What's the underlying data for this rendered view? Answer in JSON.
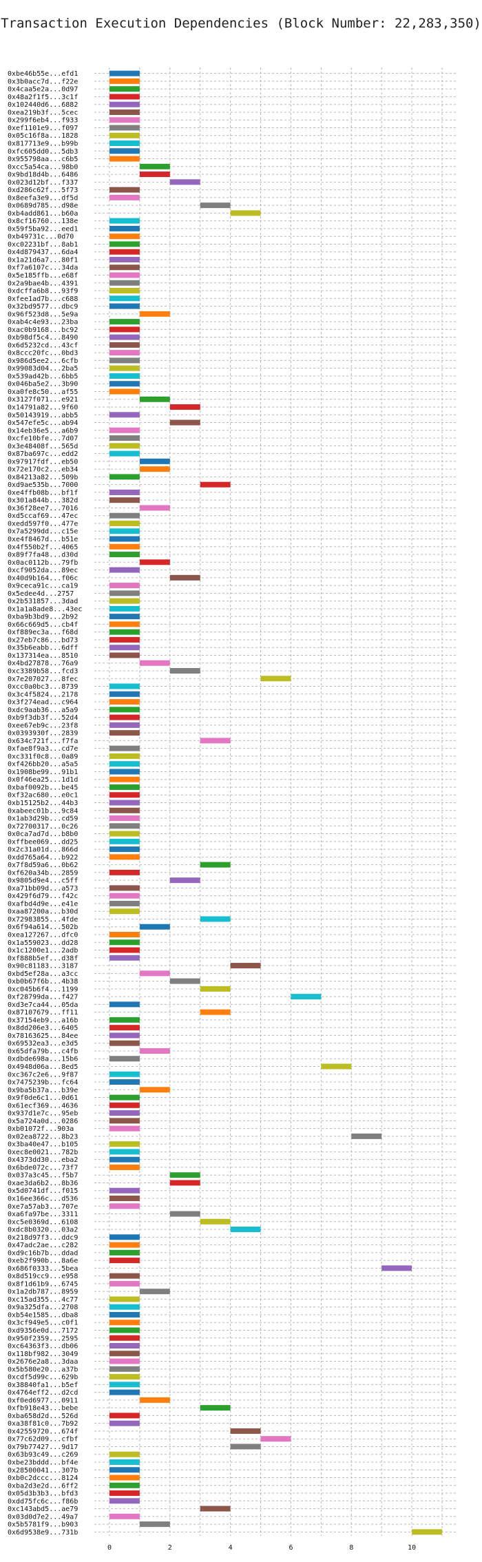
{
  "chart_data": {
    "type": "bar",
    "orientation": "horizontal-gantt",
    "title": "Transaction Execution Dependencies (Block Number: 22,283,350)",
    "xlabel": "",
    "ylabel": "",
    "xlim": [
      -0.5,
      11.5
    ],
    "xticks": [
      0,
      2,
      4,
      6,
      8,
      10
    ],
    "grid": true,
    "palette": [
      "#1f77b4",
      "#ff7f0e",
      "#2ca02c",
      "#d62728",
      "#9467bd",
      "#8c564b",
      "#e377c2",
      "#7f7f7f",
      "#bcbd22",
      "#17becf"
    ],
    "transactions": [
      {
        "label": "0xbe46b55e...efd1",
        "start": 0
      },
      {
        "label": "0x3b0acc7d...f22e",
        "start": 0
      },
      {
        "label": "0x4caa5e2a...0d97",
        "start": 0
      },
      {
        "label": "0x48a2f1f5...3c1f",
        "start": 0
      },
      {
        "label": "0x102440d6...6882",
        "start": 0
      },
      {
        "label": "0xea219b3f...5cec",
        "start": 0
      },
      {
        "label": "0x299f6eb4...f933",
        "start": 0
      },
      {
        "label": "0xef1101e9...f097",
        "start": 0
      },
      {
        "label": "0x05c16f8a...1828",
        "start": 0
      },
      {
        "label": "0x817713e9...b99b",
        "start": 0
      },
      {
        "label": "0xfc605dd0...5db3",
        "start": 0
      },
      {
        "label": "0x955798aa...c6b5",
        "start": 0
      },
      {
        "label": "0xcc5a54ca...98b0",
        "start": 1
      },
      {
        "label": "0x9bd18d4b...6486",
        "start": 1
      },
      {
        "label": "0x023d12bf...f337",
        "start": 2
      },
      {
        "label": "0xd286c62f...5f73",
        "start": 0
      },
      {
        "label": "0x8eefa3e9...df5d",
        "start": 0
      },
      {
        "label": "0x0689d785...d98e",
        "start": 3
      },
      {
        "label": "0xb4add861...b60a",
        "start": 4
      },
      {
        "label": "0x8cf16760...138e",
        "start": 0
      },
      {
        "label": "0x59f5ba92...eed1",
        "start": 0
      },
      {
        "label": "0xb49731c...0d70",
        "start": 0
      },
      {
        "label": "0xc02231bf...8ab1",
        "start": 0
      },
      {
        "label": "0x4d879437...6da4",
        "start": 0
      },
      {
        "label": "0x1a21d6a7...80f1",
        "start": 0
      },
      {
        "label": "0xf7a6107c...34da",
        "start": 0
      },
      {
        "label": "0x5e185ffb...e68f",
        "start": 0
      },
      {
        "label": "0x2a9bae4b...4391",
        "start": 0
      },
      {
        "label": "0xdcffa6b8...93f9",
        "start": 0
      },
      {
        "label": "0xfee1ad7b...c688",
        "start": 0
      },
      {
        "label": "0x32bd9577...dbc9",
        "start": 0
      },
      {
        "label": "0x96f523d8...5e9a",
        "start": 1
      },
      {
        "label": "0xab4c4e93...23ba",
        "start": 0
      },
      {
        "label": "0xac0b9168...bc92",
        "start": 0
      },
      {
        "label": "0xb98df5c4...8490",
        "start": 0
      },
      {
        "label": "0x6d5232cd...43cf",
        "start": 0
      },
      {
        "label": "0x8ccc20fc...0bd3",
        "start": 0
      },
      {
        "label": "0x986d5ee2...6cfb",
        "start": 0
      },
      {
        "label": "0x99083d04...2ba5",
        "start": 0
      },
      {
        "label": "0x539ad42b...6bb5",
        "start": 0
      },
      {
        "label": "0x046ba5e2...3b90",
        "start": 0
      },
      {
        "label": "0xa0fe8c50...af55",
        "start": 0
      },
      {
        "label": "0x3127f071...e921",
        "start": 1
      },
      {
        "label": "0x14791a82...9f60",
        "start": 2
      },
      {
        "label": "0x50143919...abb5",
        "start": 0
      },
      {
        "label": "0x547efe5c...ab94",
        "start": 2
      },
      {
        "label": "0x14eb36e5...a6b9",
        "start": 0
      },
      {
        "label": "0xcfe10bfe...7d07",
        "start": 0
      },
      {
        "label": "0x3e48408f...565d",
        "start": 0
      },
      {
        "label": "0x87ba697c...edd2",
        "start": 0
      },
      {
        "label": "0x97917fdf...eb50",
        "start": 1
      },
      {
        "label": "0x72e170c2...eb34",
        "start": 1
      },
      {
        "label": "0x84213a82...509b",
        "start": 0
      },
      {
        "label": "0xd9ae535b...7000",
        "start": 3
      },
      {
        "label": "0xe4ffb08b...bf1f",
        "start": 0
      },
      {
        "label": "0x301a844b...382d",
        "start": 0
      },
      {
        "label": "0x36f28ee7...7016",
        "start": 1
      },
      {
        "label": "0xd5ccaf69...47ec",
        "start": 0
      },
      {
        "label": "0xedd597f0...477e",
        "start": 0
      },
      {
        "label": "0x7a5299dd...c15e",
        "start": 0
      },
      {
        "label": "0xe4f8467d...b51e",
        "start": 0
      },
      {
        "label": "0x4f550b2f...4065",
        "start": 0
      },
      {
        "label": "0x89f7fa48...d30d",
        "start": 0
      },
      {
        "label": "0x0ac0112b...79fb",
        "start": 1
      },
      {
        "label": "0xcf9052da...89ec",
        "start": 0
      },
      {
        "label": "0x40d9b164...f06c",
        "start": 2
      },
      {
        "label": "0x9ceca91c...ca19",
        "start": 0
      },
      {
        "label": "0x5edee4d...2757",
        "start": 0
      },
      {
        "label": "0x2b531857...3dad",
        "start": 0
      },
      {
        "label": "0x1a1a8ade8...43ec",
        "start": 0
      },
      {
        "label": "0xba9b3bd9...2b92",
        "start": 0
      },
      {
        "label": "0x66c669d5...cb4f",
        "start": 0
      },
      {
        "label": "0xf889ec3a...f68d",
        "start": 0
      },
      {
        "label": "0x27eb7c86...bd73",
        "start": 0
      },
      {
        "label": "0x35b6eabb...6dff",
        "start": 0
      },
      {
        "label": "0x137314ea...8510",
        "start": 0
      },
      {
        "label": "0x4bd27878...76a9",
        "start": 1
      },
      {
        "label": "0xc3389b58...fcd3",
        "start": 2
      },
      {
        "label": "0x7e207027...8fec",
        "start": 5
      },
      {
        "label": "0xcc0a0bc3...8739",
        "start": 0
      },
      {
        "label": "0x3c4f5824...2178",
        "start": 0
      },
      {
        "label": "0x3f274ead...c964",
        "start": 0
      },
      {
        "label": "0xdc9aab36...a5a9",
        "start": 0
      },
      {
        "label": "0xb9f3db3f...52d4",
        "start": 0
      },
      {
        "label": "0xee67eb9c...23f8",
        "start": 0
      },
      {
        "label": "0x0393930f...2839",
        "start": 0
      },
      {
        "label": "0x634c721f...f7fa",
        "start": 3
      },
      {
        "label": "0xfae8f9a3...cd7e",
        "start": 0
      },
      {
        "label": "0xc331f0c8...0a89",
        "start": 0
      },
      {
        "label": "0xf426bb20...a5a5",
        "start": 0
      },
      {
        "label": "0x1908be99...91b1",
        "start": 0
      },
      {
        "label": "0x0f46ea25...1d1d",
        "start": 0
      },
      {
        "label": "0xbaf0092b...be45",
        "start": 0
      },
      {
        "label": "0xf32ac680...e0c1",
        "start": 0
      },
      {
        "label": "0xb15125b2...44b3",
        "start": 0
      },
      {
        "label": "0xabeec01b...9c84",
        "start": 0
      },
      {
        "label": "0x1ab3d29b...cd59",
        "start": 0
      },
      {
        "label": "0x72700317...0c26",
        "start": 0
      },
      {
        "label": "0x0ca7ad7d...b8b0",
        "start": 0
      },
      {
        "label": "0xffbee069...dd25",
        "start": 0
      },
      {
        "label": "0x2c31a01d...866d",
        "start": 0
      },
      {
        "label": "0xdd765a64...b922",
        "start": 0
      },
      {
        "label": "0x7f8d59a6...0b62",
        "start": 3
      },
      {
        "label": "0xf620a34b...2859",
        "start": 0
      },
      {
        "label": "0x9805d9e4...c5ff",
        "start": 2
      },
      {
        "label": "0xa71bb09d...a573",
        "start": 0
      },
      {
        "label": "0x429f6d79...f42c",
        "start": 0
      },
      {
        "label": "0xafbd4d9e...e41e",
        "start": 0
      },
      {
        "label": "0xaa87200a...b30d",
        "start": 0
      },
      {
        "label": "0x72983855...4fde",
        "start": 3
      },
      {
        "label": "0x6f94a614...502b",
        "start": 1
      },
      {
        "label": "0xea127267...dfc0",
        "start": 0
      },
      {
        "label": "0x1a559023...dd28",
        "start": 0
      },
      {
        "label": "0x1c1200e1...2adb",
        "start": 0
      },
      {
        "label": "0xf888b5ef...d38f",
        "start": 0
      },
      {
        "label": "0x90c81183...3187",
        "start": 4
      },
      {
        "label": "0xbd5ef28a...a3cc",
        "start": 1
      },
      {
        "label": "0xb0b67f6b...4b38",
        "start": 2
      },
      {
        "label": "0xc045b6f4...1199",
        "start": 3
      },
      {
        "label": "0xf28799da...f427",
        "start": 6
      },
      {
        "label": "0xd3e7ca44...05da",
        "start": 0
      },
      {
        "label": "0x87107679...ff11",
        "start": 3
      },
      {
        "label": "0x37154eb9...a16b",
        "start": 0
      },
      {
        "label": "0x8dd206e3...6405",
        "start": 0
      },
      {
        "label": "0x78163625...84ee",
        "start": 0
      },
      {
        "label": "0x69532ea3...e3d5",
        "start": 0
      },
      {
        "label": "0x65dfa79b...c4fb",
        "start": 1
      },
      {
        "label": "0xdbde698a...15b6",
        "start": 0
      },
      {
        "label": "0x4948d06a...8ed5",
        "start": 7
      },
      {
        "label": "0xc367c2e6...9f87",
        "start": 0
      },
      {
        "label": "0x7475239b...fc64",
        "start": 0
      },
      {
        "label": "0x9ba5b37a...b39e",
        "start": 1
      },
      {
        "label": "0x9f0de6c1...0d61",
        "start": 0
      },
      {
        "label": "0x61ecf369...4636",
        "start": 0
      },
      {
        "label": "0x937d1e7c...95eb",
        "start": 0
      },
      {
        "label": "0x5a724a0d...0286",
        "start": 0
      },
      {
        "label": "0xb01072f...903a",
        "start": 0
      },
      {
        "label": "0x02ea8722...8b23",
        "start": 8
      },
      {
        "label": "0x3ba40e47...b105",
        "start": 0
      },
      {
        "label": "0xec8e0021...782b",
        "start": 0
      },
      {
        "label": "0x4373dd30...eba2",
        "start": 0
      },
      {
        "label": "0x6bde072c...73f7",
        "start": 0
      },
      {
        "label": "0x037a3c45...f5b7",
        "start": 2
      },
      {
        "label": "0xae3da6b2...8b36",
        "start": 2
      },
      {
        "label": "0x5d0741df...f015",
        "start": 0
      },
      {
        "label": "0x16ee366c...d536",
        "start": 0
      },
      {
        "label": "0xe7a57ab3...707e",
        "start": 0
      },
      {
        "label": "0xa6fa97be...3311",
        "start": 2
      },
      {
        "label": "0xc5e0369d...6108",
        "start": 3
      },
      {
        "label": "0xdc8b0320...03a2",
        "start": 4
      },
      {
        "label": "0x218d97f3...ddc9",
        "start": 0
      },
      {
        "label": "0x47adc2ae...c282",
        "start": 0
      },
      {
        "label": "0xd9c16b7b...ddad",
        "start": 0
      },
      {
        "label": "0xeb2f990b...8a6e",
        "start": 0
      },
      {
        "label": "0x686f0333...5bea",
        "start": 9
      },
      {
        "label": "0x8d519cc9...e958",
        "start": 0
      },
      {
        "label": "0x8f1d61b9...6745",
        "start": 0
      },
      {
        "label": "0x1a2db787...8959",
        "start": 1
      },
      {
        "label": "0xc15ad355...4c77",
        "start": 0
      },
      {
        "label": "0x9a325dfa...2708",
        "start": 0
      },
      {
        "label": "0xb54e1585...dba8",
        "start": 0
      },
      {
        "label": "0x3cf949e5...c0f1",
        "start": 0
      },
      {
        "label": "0xd9356e0d...7172",
        "start": 0
      },
      {
        "label": "0x950f2359...2595",
        "start": 0
      },
      {
        "label": "0xc64363f3...db06",
        "start": 0
      },
      {
        "label": "0x118bf982...3049",
        "start": 0
      },
      {
        "label": "0x2676e2a8...3daa",
        "start": 0
      },
      {
        "label": "0x5b580e20...a37b",
        "start": 0
      },
      {
        "label": "0xcdf5d99c...629b",
        "start": 0
      },
      {
        "label": "0x38840fa1...b5ef",
        "start": 0
      },
      {
        "label": "0x4764eff2...d2cd",
        "start": 0
      },
      {
        "label": "0xf0ed6977...0911",
        "start": 1
      },
      {
        "label": "0xfb918e43...bebe",
        "start": 3
      },
      {
        "label": "0xba658d2d...526d",
        "start": 0
      },
      {
        "label": "0xa38f81c0...7b92",
        "start": 0
      },
      {
        "label": "0x42559720...674f",
        "start": 4
      },
      {
        "label": "0x77c62d09...cfbf",
        "start": 5
      },
      {
        "label": "0x79b77427...9d17",
        "start": 4
      },
      {
        "label": "0x63b93c49...c269",
        "start": 0
      },
      {
        "label": "0xbe23bddd...bf4e",
        "start": 0
      },
      {
        "label": "0x28500041...307b",
        "start": 0
      },
      {
        "label": "0xb0c2dccc...8124",
        "start": 0
      },
      {
        "label": "0xba2d3e2d...6ff2",
        "start": 0
      },
      {
        "label": "0x05d3b3b3...bfd3",
        "start": 0
      },
      {
        "label": "0xdd75fc6c...f86b",
        "start": 0
      },
      {
        "label": "0xc143abd5...ae79",
        "start": 3
      },
      {
        "label": "0x03d0d7e2...49a7",
        "start": 0
      },
      {
        "label": "0x5b5781f9...b903",
        "start": 1
      },
      {
        "label": "0x6d9538e9...731b",
        "start": 10
      }
    ]
  }
}
